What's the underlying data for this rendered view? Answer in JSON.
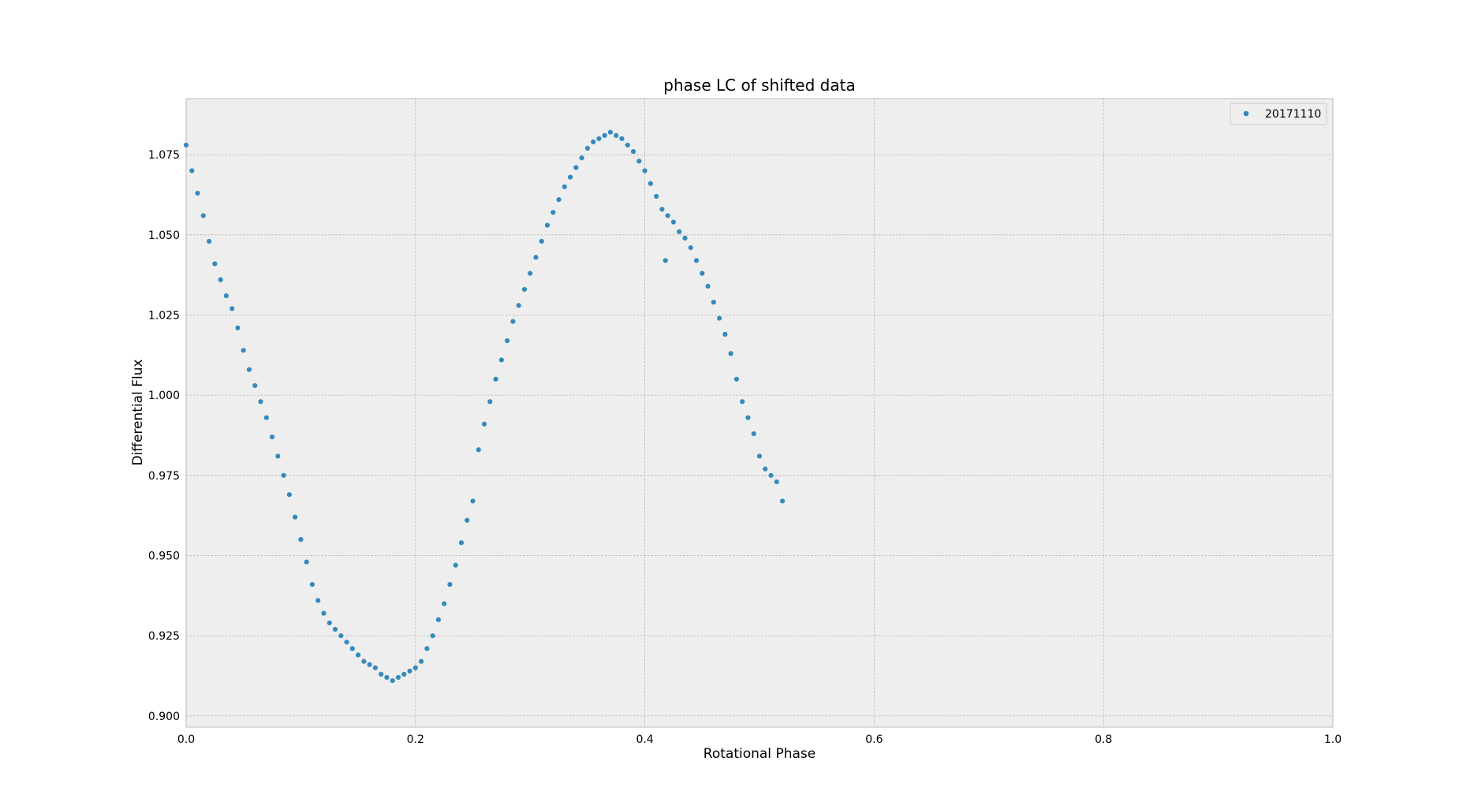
{
  "chart_data": {
    "type": "scatter",
    "title": "phase LC of shifted data",
    "xlabel": "Rotational Phase",
    "ylabel": "Differential Flux",
    "xlim": [
      0.0,
      1.0
    ],
    "ylim": [
      0.8965,
      1.0925
    ],
    "xticks": [
      "0.0",
      "0.2",
      "0.4",
      "0.6",
      "0.8",
      "1.0"
    ],
    "yticks": [
      "0.900",
      "0.925",
      "0.950",
      "0.975",
      "1.000",
      "1.025",
      "1.050",
      "1.075"
    ],
    "grid": true,
    "legend_position": "top-right",
    "series": [
      {
        "name": "20171110",
        "color": "#348ABD",
        "points": [
          [
            0.0,
            1.078
          ],
          [
            0.005,
            1.07
          ],
          [
            0.01,
            1.063
          ],
          [
            0.015,
            1.056
          ],
          [
            0.02,
            1.048
          ],
          [
            0.025,
            1.041
          ],
          [
            0.03,
            1.036
          ],
          [
            0.035,
            1.031
          ],
          [
            0.04,
            1.027
          ],
          [
            0.045,
            1.021
          ],
          [
            0.05,
            1.014
          ],
          [
            0.055,
            1.008
          ],
          [
            0.06,
            1.003
          ],
          [
            0.065,
            0.998
          ],
          [
            0.07,
            0.993
          ],
          [
            0.075,
            0.987
          ],
          [
            0.08,
            0.981
          ],
          [
            0.085,
            0.975
          ],
          [
            0.09,
            0.969
          ],
          [
            0.095,
            0.962
          ],
          [
            0.1,
            0.955
          ],
          [
            0.105,
            0.948
          ],
          [
            0.11,
            0.941
          ],
          [
            0.115,
            0.936
          ],
          [
            0.12,
            0.932
          ],
          [
            0.125,
            0.929
          ],
          [
            0.13,
            0.927
          ],
          [
            0.135,
            0.925
          ],
          [
            0.14,
            0.923
          ],
          [
            0.145,
            0.921
          ],
          [
            0.15,
            0.919
          ],
          [
            0.155,
            0.917
          ],
          [
            0.16,
            0.916
          ],
          [
            0.165,
            0.915
          ],
          [
            0.17,
            0.913
          ],
          [
            0.175,
            0.912
          ],
          [
            0.18,
            0.911
          ],
          [
            0.185,
            0.912
          ],
          [
            0.19,
            0.913
          ],
          [
            0.195,
            0.914
          ],
          [
            0.2,
            0.915
          ],
          [
            0.205,
            0.917
          ],
          [
            0.21,
            0.921
          ],
          [
            0.215,
            0.925
          ],
          [
            0.22,
            0.93
          ],
          [
            0.225,
            0.935
          ],
          [
            0.23,
            0.941
          ],
          [
            0.235,
            0.947
          ],
          [
            0.24,
            0.954
          ],
          [
            0.245,
            0.961
          ],
          [
            0.25,
            0.967
          ],
          [
            0.255,
            0.983
          ],
          [
            0.26,
            0.991
          ],
          [
            0.265,
            0.998
          ],
          [
            0.27,
            1.005
          ],
          [
            0.275,
            1.011
          ],
          [
            0.28,
            1.017
          ],
          [
            0.285,
            1.023
          ],
          [
            0.29,
            1.028
          ],
          [
            0.295,
            1.033
          ],
          [
            0.3,
            1.038
          ],
          [
            0.305,
            1.043
          ],
          [
            0.31,
            1.048
          ],
          [
            0.315,
            1.053
          ],
          [
            0.32,
            1.057
          ],
          [
            0.325,
            1.061
          ],
          [
            0.33,
            1.065
          ],
          [
            0.335,
            1.068
          ],
          [
            0.34,
            1.071
          ],
          [
            0.345,
            1.074
          ],
          [
            0.35,
            1.077
          ],
          [
            0.355,
            1.079
          ],
          [
            0.36,
            1.08
          ],
          [
            0.365,
            1.081
          ],
          [
            0.37,
            1.082
          ],
          [
            0.375,
            1.081
          ],
          [
            0.38,
            1.08
          ],
          [
            0.385,
            1.078
          ],
          [
            0.39,
            1.076
          ],
          [
            0.395,
            1.073
          ],
          [
            0.4,
            1.07
          ],
          [
            0.405,
            1.066
          ],
          [
            0.41,
            1.062
          ],
          [
            0.415,
            1.058
          ],
          [
            0.418,
            1.042
          ],
          [
            0.42,
            1.056
          ],
          [
            0.425,
            1.054
          ],
          [
            0.43,
            1.051
          ],
          [
            0.435,
            1.049
          ],
          [
            0.44,
            1.046
          ],
          [
            0.445,
            1.042
          ],
          [
            0.45,
            1.038
          ],
          [
            0.455,
            1.034
          ],
          [
            0.46,
            1.029
          ],
          [
            0.465,
            1.024
          ],
          [
            0.47,
            1.019
          ],
          [
            0.475,
            1.013
          ],
          [
            0.48,
            1.005
          ],
          [
            0.485,
            0.998
          ],
          [
            0.49,
            0.993
          ],
          [
            0.495,
            0.988
          ],
          [
            0.5,
            0.981
          ],
          [
            0.505,
            0.977
          ],
          [
            0.51,
            0.975
          ],
          [
            0.515,
            0.973
          ],
          [
            0.52,
            0.967
          ]
        ]
      }
    ]
  }
}
